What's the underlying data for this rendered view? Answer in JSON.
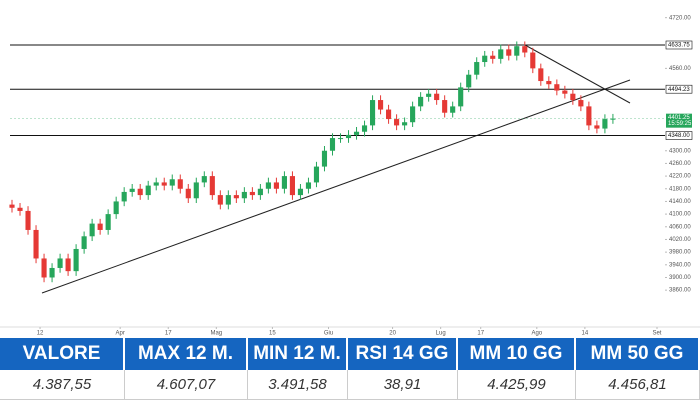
{
  "chart_data": {
    "type": "candlestick",
    "up_color": "#26a65b",
    "down_color": "#e53935",
    "open": [
      4130,
      4120,
      4110,
      4050,
      3960,
      3900,
      3930,
      3960,
      3920,
      3990,
      4030,
      4070,
      4050,
      4100,
      4140,
      4170,
      4180,
      4160,
      4190,
      4200,
      4190,
      4210,
      4180,
      4150,
      4200,
      4220,
      4160,
      4130,
      4160,
      4150,
      4170,
      4160,
      4180,
      4200,
      4180,
      4220,
      4160,
      4180,
      4200,
      4250,
      4300,
      4340,
      4340,
      4350,
      4360,
      4380,
      4460,
      4430,
      4400,
      4380,
      4390,
      4440,
      4470,
      4480,
      4460,
      4420,
      4440,
      4500,
      4540,
      4580,
      4600,
      4590,
      4620,
      4600,
      4630,
      4610,
      4560,
      4520,
      4510,
      4490,
      4480,
      4460,
      4440,
      4380,
      4370,
      4400
    ],
    "high": [
      4145,
      4135,
      4125,
      4065,
      3975,
      3945,
      3975,
      3975,
      4005,
      4045,
      4085,
      4085,
      4115,
      4155,
      4185,
      4195,
      4195,
      4205,
      4215,
      4215,
      4225,
      4225,
      4195,
      4215,
      4235,
      4235,
      4175,
      4175,
      4175,
      4185,
      4185,
      4195,
      4215,
      4215,
      4235,
      4235,
      4195,
      4215,
      4265,
      4315,
      4355,
      4355,
      4365,
      4375,
      4395,
      4475,
      4475,
      4445,
      4415,
      4405,
      4455,
      4485,
      4495,
      4495,
      4475,
      4455,
      4515,
      4555,
      4595,
      4615,
      4615,
      4635,
      4635,
      4645,
      4645,
      4625,
      4575,
      4535,
      4525,
      4505,
      4495,
      4475,
      4455,
      4395,
      4415,
      4416.25
    ],
    "low": [
      4105,
      4095,
      4035,
      3945,
      3885,
      3885,
      3915,
      3905,
      3905,
      3975,
      4015,
      4035,
      4035,
      4085,
      4125,
      4155,
      4145,
      4145,
      4175,
      4175,
      4175,
      4165,
      4135,
      4135,
      4185,
      4145,
      4115,
      4115,
      4135,
      4135,
      4145,
      4145,
      4165,
      4165,
      4165,
      4145,
      4145,
      4165,
      4185,
      4235,
      4285,
      4325,
      4325,
      4335,
      4345,
      4365,
      4415,
      4385,
      4365,
      4365,
      4375,
      4425,
      4455,
      4445,
      4405,
      4405,
      4425,
      4485,
      4525,
      4565,
      4575,
      4575,
      4585,
      4585,
      4595,
      4545,
      4505,
      4495,
      4475,
      4465,
      4445,
      4425,
      4365,
      4355,
      4355,
      4385
    ],
    "close": [
      4120,
      4110,
      4050,
      3960,
      3900,
      3930,
      3960,
      3920,
      3990,
      4030,
      4070,
      4050,
      4100,
      4140,
      4170,
      4180,
      4160,
      4190,
      4200,
      4190,
      4210,
      4180,
      4150,
      4200,
      4220,
      4160,
      4130,
      4160,
      4150,
      4170,
      4160,
      4180,
      4200,
      4180,
      4220,
      4160,
      4180,
      4200,
      4250,
      4300,
      4340,
      4340,
      4350,
      4360,
      4380,
      4460,
      4430,
      4400,
      4380,
      4390,
      4440,
      4470,
      4480,
      4460,
      4420,
      4440,
      4500,
      4540,
      4580,
      4600,
      4590,
      4620,
      4600,
      4630,
      4610,
      4560,
      4520,
      4510,
      4490,
      4480,
      4460,
      4440,
      4380,
      4370,
      4400,
      4401.25
    ],
    "xlim": [
      0,
      82
    ],
    "xticks": [
      {
        "value": 4,
        "label": "12"
      },
      {
        "value": 14,
        "label": "Apr"
      },
      {
        "value": 20,
        "label": "17"
      },
      {
        "value": 26,
        "label": "Mag"
      },
      {
        "value": 33,
        "label": "15"
      },
      {
        "value": 40,
        "label": "Giu"
      },
      {
        "value": 48,
        "label": "20"
      },
      {
        "value": 54,
        "label": "Lug"
      },
      {
        "value": 59,
        "label": "17"
      },
      {
        "value": 66,
        "label": "Ago"
      },
      {
        "value": 72,
        "label": "14"
      },
      {
        "value": 81,
        "label": "Set"
      }
    ],
    "ylim": [
      3750,
      4760
    ],
    "yticks": [
      {
        "value": 3860,
        "label": "3860.00"
      },
      {
        "value": 3900,
        "label": "3900.00"
      },
      {
        "value": 3940,
        "label": "3940.00"
      },
      {
        "value": 3980,
        "label": "3980.00"
      },
      {
        "value": 4020,
        "label": "4020.00"
      },
      {
        "value": 4060,
        "label": "4060.00"
      },
      {
        "value": 4100,
        "label": "4100.00"
      },
      {
        "value": 4140,
        "label": "4140.00"
      },
      {
        "value": 4180,
        "label": "4180.00"
      },
      {
        "value": 4220,
        "label": "4220.00"
      },
      {
        "value": 4260,
        "label": "4260.00"
      },
      {
        "value": 4300,
        "label": "4300.00"
      },
      {
        "value": 4560,
        "label": "4560.00"
      },
      {
        "value": 4720,
        "label": "4720.00"
      }
    ],
    "levels": [
      {
        "value": 4633.75,
        "label": "4633.75"
      },
      {
        "value": 4494.23,
        "label": "4494.23"
      },
      {
        "value": 4348,
        "label": "4348.00"
      }
    ],
    "last_price": 4401.25,
    "last_time": "15:59:25"
  },
  "table": {
    "headers": [
      "VALORE",
      "MAX 12 M.",
      "MIN 12 M.",
      "RSI 14 GG",
      "MM 10 GG",
      "MM 50 GG"
    ],
    "rows": [
      [
        "4.387,55",
        "4.607,07",
        "3.491,58",
        "38,91",
        "4.425,99",
        "4.456,81"
      ]
    ]
  }
}
